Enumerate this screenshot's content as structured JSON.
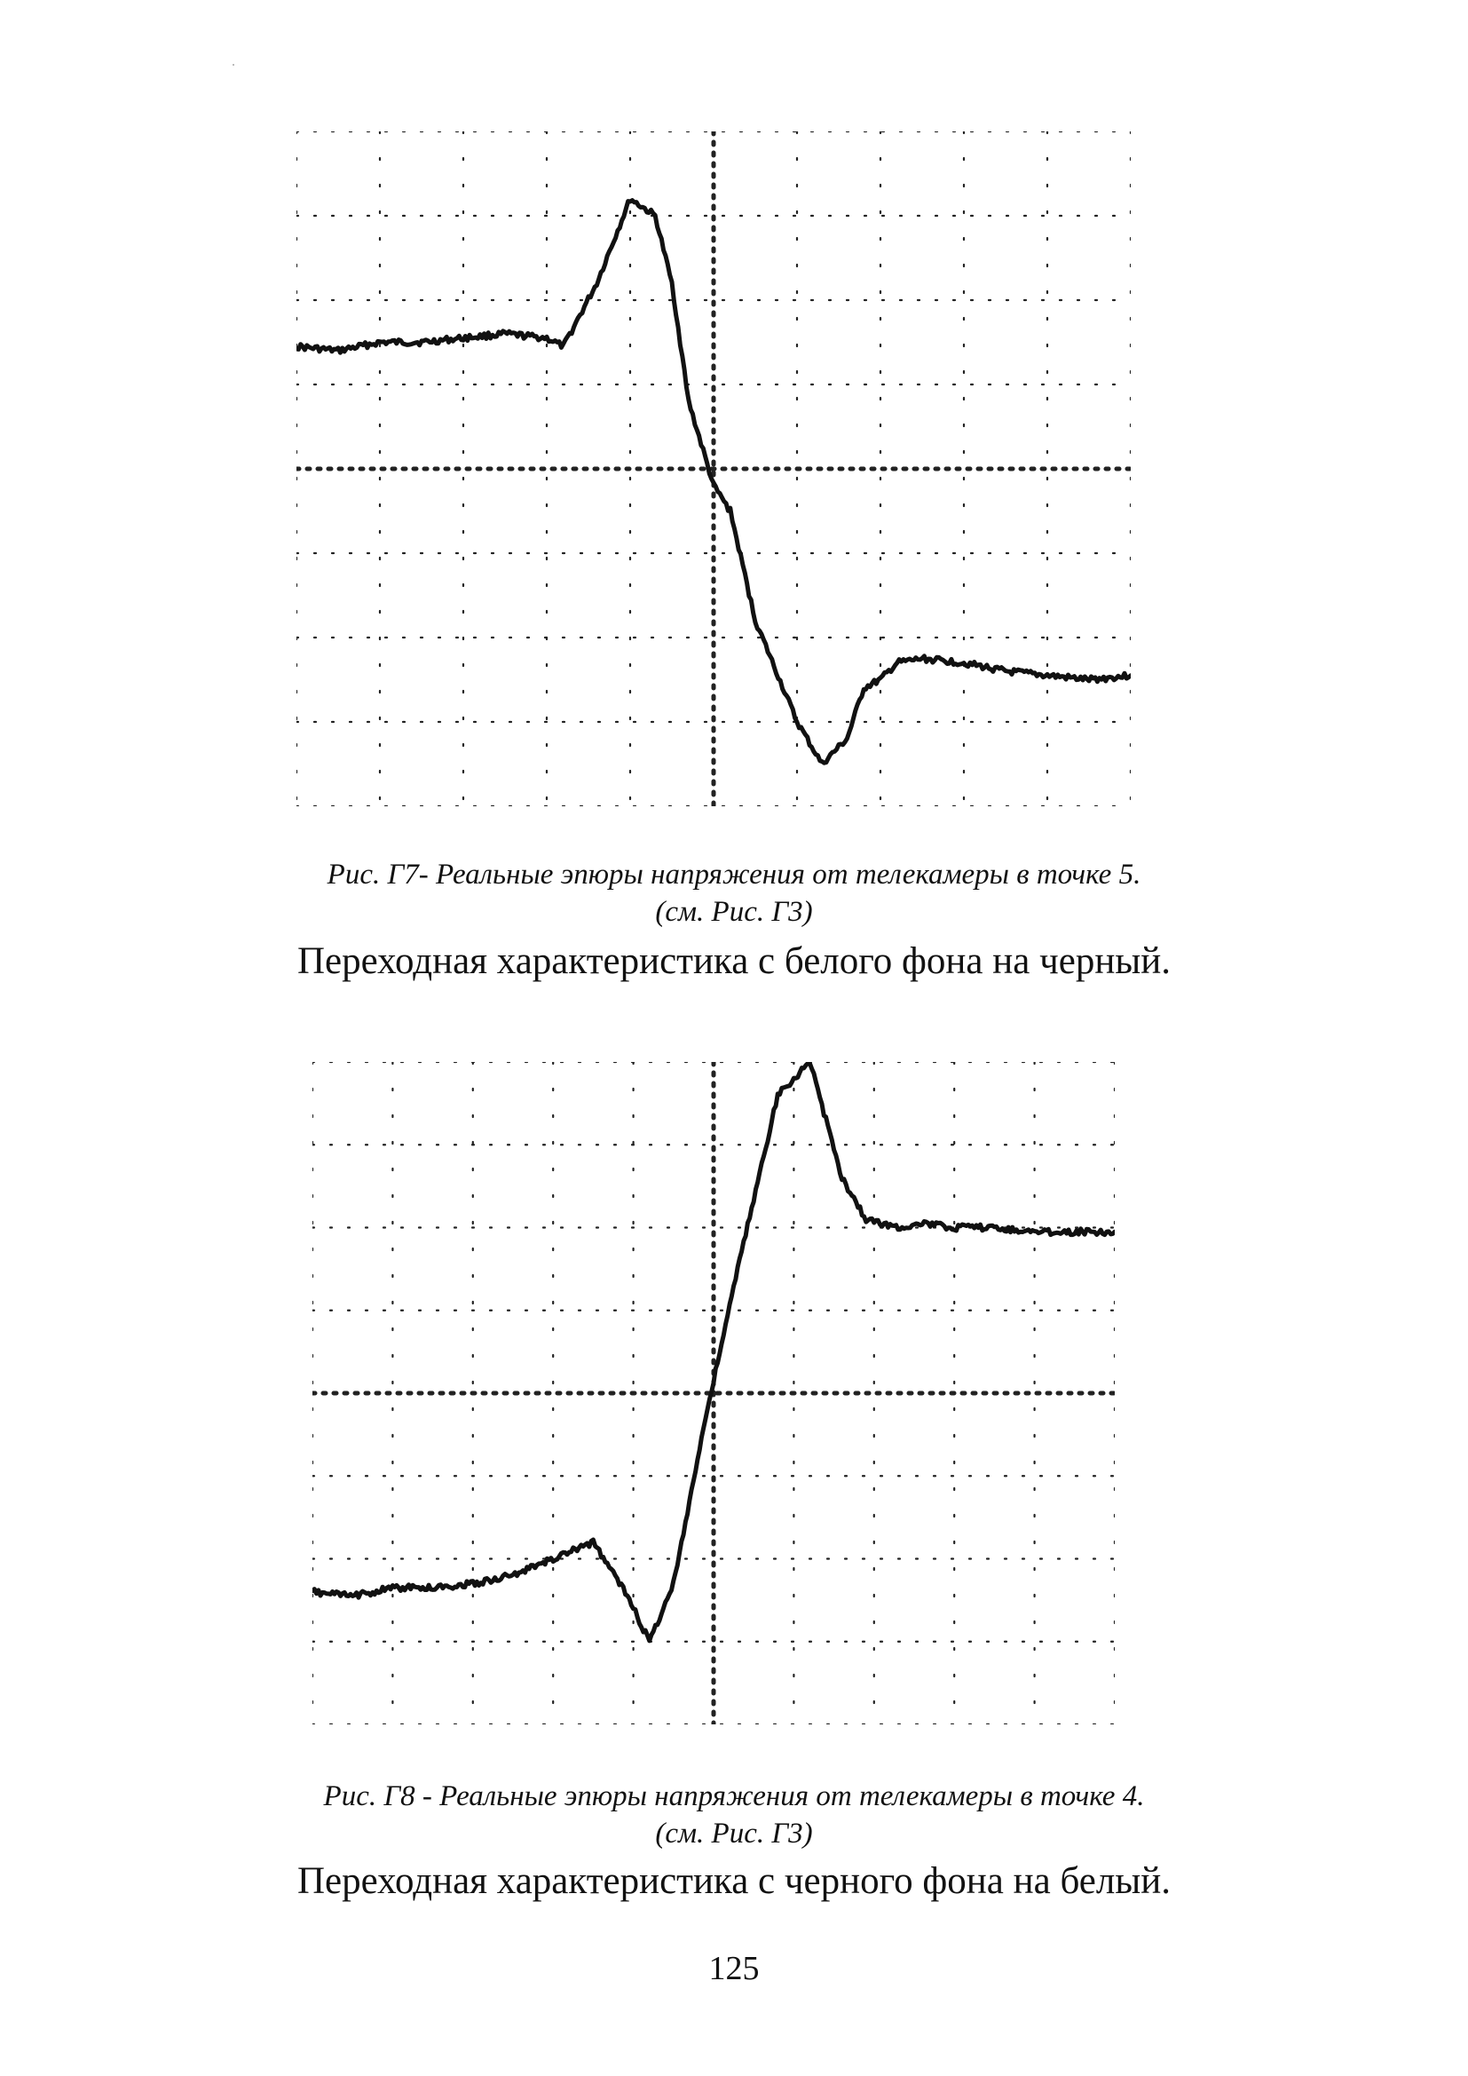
{
  "figures": [
    {
      "caption_line1": "Рис. Г7- Реальные эпюры напряжения от телекамеры в точке 5.",
      "caption_line2": "(см. Рис. Г3)",
      "subtitle": "Переходная характеристика с белого фона на черный.",
      "chart_data": {
        "type": "line",
        "grid": "oscilloscope 10x8 divisions, dotted",
        "xlim": [
          0,
          10
        ],
        "ylim": [
          -4,
          4
        ],
        "series": [
          {
            "x": [
              0,
              0.5,
              1.0,
              1.5,
              2.0,
              2.5,
              3.0,
              3.2,
              3.6,
              4.0,
              4.3,
              4.5,
              4.7,
              5.0,
              5.2,
              5.5,
              6.0,
              6.3,
              6.6,
              6.8,
              7.0,
              7.2,
              7.5,
              8.0,
              8.5,
              9.0,
              9.5,
              10.0
            ],
            "y": [
              1.45,
              1.4,
              1.5,
              1.5,
              1.55,
              1.6,
              1.55,
              1.45,
              2.2,
              3.2,
              3.0,
              2.2,
              0.8,
              -0.2,
              -0.5,
              -1.8,
              -3.0,
              -3.5,
              -3.2,
              -2.6,
              -2.5,
              -2.3,
              -2.25,
              -2.3,
              -2.4,
              -2.45,
              -2.5,
              -2.45
            ]
          }
        ]
      }
    },
    {
      "caption_line1": "Рис. Г8 - Реальные эпюры напряжения от телекамеры в точке 4.",
      "caption_line2": "(см. Рис. Г3)",
      "subtitle": "Переходная характеристика с черного фона на белый.",
      "chart_data": {
        "type": "line",
        "grid": "oscilloscope 10x8 divisions, dotted",
        "xlim": [
          0,
          10
        ],
        "ylim": [
          -4,
          4
        ],
        "series": [
          {
            "x": [
              0,
              0.5,
              1.0,
              1.5,
              2.0,
              2.5,
              3.0,
              3.5,
              3.9,
              4.2,
              4.5,
              4.9,
              5.3,
              5.8,
              6.2,
              6.6,
              6.9,
              7.3,
              7.6,
              8.0,
              8.5,
              9.0,
              9.5,
              10.0
            ],
            "y": [
              -2.4,
              -2.45,
              -2.35,
              -2.35,
              -2.3,
              -2.2,
              -2.0,
              -1.8,
              -2.4,
              -3.0,
              -2.3,
              -0.3,
              1.5,
              3.6,
              4.0,
              2.6,
              2.1,
              2.0,
              2.05,
              2.0,
              2.0,
              1.95,
              1.95,
              1.95
            ]
          }
        ]
      }
    }
  ],
  "page_number": "125"
}
